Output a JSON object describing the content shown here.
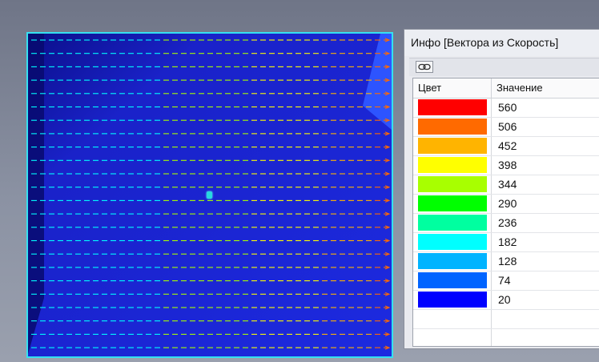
{
  "panel": {
    "title": "Инфо [Вектора из Скорость]",
    "link_icon": "link-icon",
    "col_color": "Цвет",
    "col_value": "Значение",
    "legend": [
      {
        "value": "560",
        "color": "#ff0000"
      },
      {
        "value": "506",
        "color": "#ff6a00"
      },
      {
        "value": "452",
        "color": "#ffb400"
      },
      {
        "value": "398",
        "color": "#ffff00"
      },
      {
        "value": "344",
        "color": "#a8ff00"
      },
      {
        "value": "290",
        "color": "#00ff00"
      },
      {
        "value": "236",
        "color": "#00ffa0"
      },
      {
        "value": "182",
        "color": "#00ffff"
      },
      {
        "value": "128",
        "color": "#00b4ff"
      },
      {
        "value": "74",
        "color": "#0064ff"
      },
      {
        "value": "20",
        "color": "#0000ff"
      }
    ]
  },
  "viewport": {
    "frame_color": "#35e0f0",
    "field_color": "#1a1fd2"
  }
}
